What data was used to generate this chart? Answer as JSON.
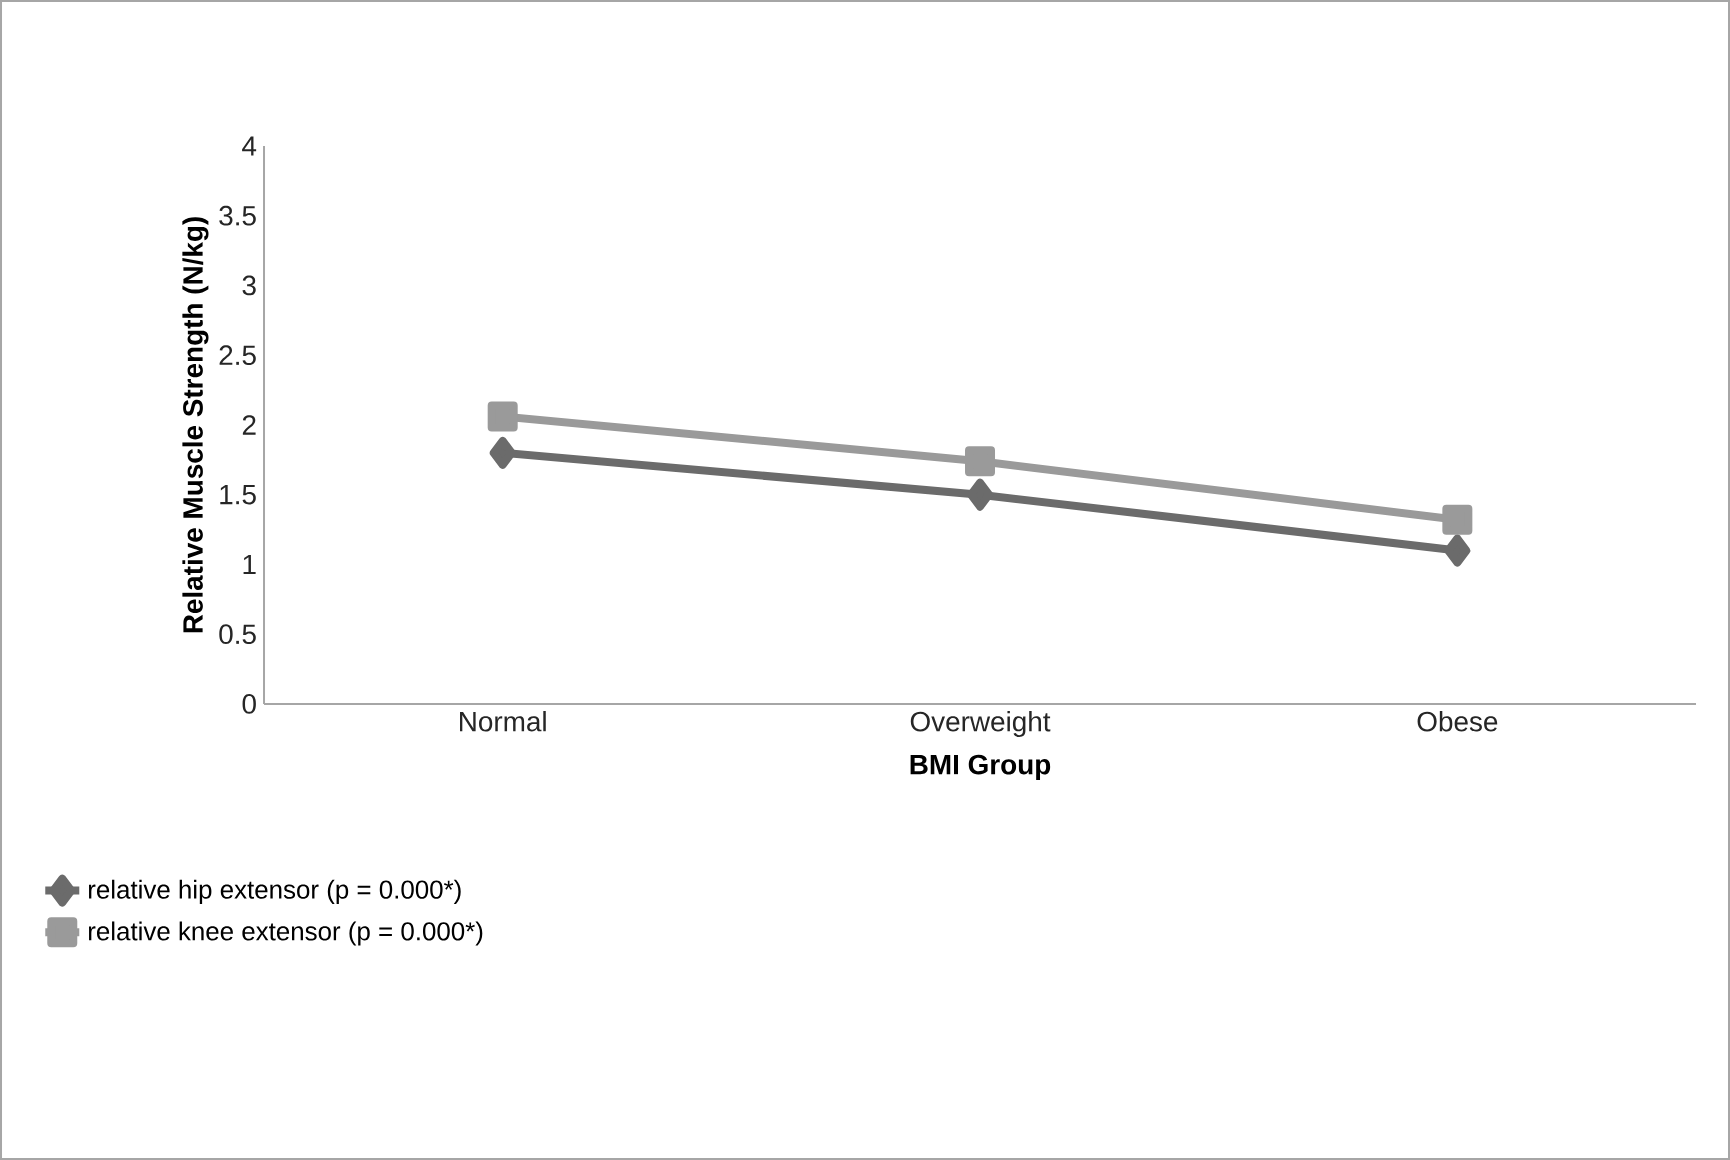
{
  "chart_data": {
    "type": "line",
    "xlabel": "BMI Group",
    "ylabel": "Relative Muscle Strength   (N/kg)",
    "categories": [
      "Normal",
      "Overweight",
      "Obese"
    ],
    "series": [
      {
        "name": "relative hip extensor (p = 0.000*)",
        "color": "#6b6b6b",
        "marker": "diamond",
        "values": [
          1.8,
          1.5,
          1.1
        ]
      },
      {
        "name": "relative knee extensor (p = 0.000*)",
        "color": "#9a9a9a",
        "marker": "square",
        "values": [
          2.06,
          1.74,
          1.32
        ]
      }
    ],
    "ylim": [
      0,
      4
    ],
    "yticks": [
      0,
      0.5,
      1,
      1.5,
      2,
      2.5,
      3,
      3.5,
      4
    ],
    "grid": false,
    "legend": "bottom left"
  }
}
